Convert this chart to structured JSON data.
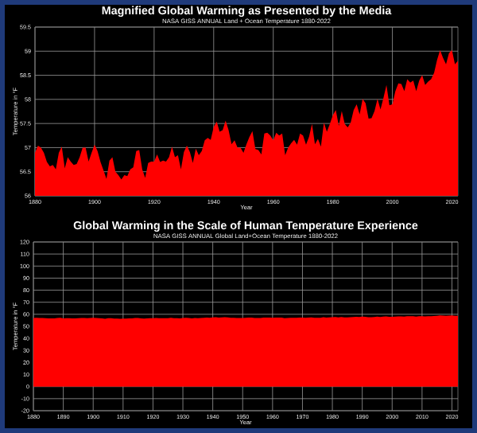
{
  "chart_data": [
    {
      "type": "area",
      "title": "Magnified Global Warming as Presented by the Media",
      "subtitle": "NASA GISS ANNUAL Land + Ocean Temperature 1880-2022",
      "xlabel": "Year",
      "ylabel": "Temperature in °F",
      "color": "#ff0000",
      "grid": true,
      "xlim": [
        1880,
        2022
      ],
      "xticks": [
        1880,
        1900,
        1920,
        1940,
        1960,
        1980,
        2000,
        2020
      ],
      "ylim": [
        56,
        59.5
      ],
      "yticks": [
        56,
        56.5,
        57,
        57.5,
        58,
        58.5,
        59,
        59.5
      ],
      "x": [
        1880,
        1881,
        1882,
        1883,
        1884,
        1885,
        1886,
        1887,
        1888,
        1889,
        1890,
        1891,
        1892,
        1893,
        1894,
        1895,
        1896,
        1897,
        1898,
        1899,
        1900,
        1901,
        1902,
        1903,
        1904,
        1905,
        1906,
        1907,
        1908,
        1909,
        1910,
        1911,
        1912,
        1913,
        1914,
        1915,
        1916,
        1917,
        1918,
        1919,
        1920,
        1921,
        1922,
        1923,
        1924,
        1925,
        1926,
        1927,
        1928,
        1929,
        1930,
        1931,
        1932,
        1933,
        1934,
        1935,
        1936,
        1937,
        1938,
        1939,
        1940,
        1941,
        1942,
        1943,
        1944,
        1945,
        1946,
        1947,
        1948,
        1949,
        1950,
        1951,
        1952,
        1953,
        1954,
        1955,
        1956,
        1957,
        1958,
        1959,
        1960,
        1961,
        1962,
        1963,
        1964,
        1965,
        1966,
        1967,
        1968,
        1969,
        1970,
        1971,
        1972,
        1973,
        1974,
        1975,
        1976,
        1977,
        1978,
        1979,
        1980,
        1981,
        1982,
        1983,
        1984,
        1985,
        1986,
        1987,
        1988,
        1989,
        1990,
        1991,
        1992,
        1993,
        1994,
        1995,
        1996,
        1997,
        1998,
        1999,
        2000,
        2001,
        2002,
        2003,
        2004,
        2005,
        2006,
        2007,
        2008,
        2009,
        2010,
        2011,
        2012,
        2013,
        2014,
        2015,
        2016,
        2017,
        2018,
        2019,
        2020,
        2021,
        2022
      ],
      "values": [
        56.89,
        57.04,
        57.0,
        56.89,
        56.7,
        56.61,
        56.64,
        56.55,
        56.89,
        57.02,
        56.57,
        56.8,
        56.71,
        56.64,
        56.66,
        56.8,
        57.0,
        57.0,
        56.71,
        56.89,
        57.06,
        56.93,
        56.7,
        56.53,
        56.35,
        56.73,
        56.8,
        56.5,
        56.43,
        56.34,
        56.43,
        56.41,
        56.55,
        56.59,
        56.93,
        56.95,
        56.55,
        56.37,
        56.68,
        56.71,
        56.71,
        56.86,
        56.7,
        56.73,
        56.71,
        56.8,
        57.02,
        56.8,
        56.84,
        56.55,
        56.91,
        57.04,
        56.91,
        56.68,
        56.98,
        56.84,
        56.93,
        57.15,
        57.2,
        57.16,
        57.43,
        57.54,
        57.33,
        57.36,
        57.56,
        57.36,
        57.07,
        57.15,
        57.0,
        57.0,
        56.89,
        57.07,
        57.22,
        57.34,
        56.97,
        56.95,
        56.86,
        57.29,
        57.31,
        57.25,
        57.15,
        57.31,
        57.25,
        57.29,
        56.84,
        57.0,
        57.09,
        57.16,
        57.06,
        57.29,
        57.25,
        57.06,
        57.22,
        57.49,
        57.07,
        57.18,
        57.02,
        57.52,
        57.33,
        57.49,
        57.67,
        57.78,
        57.45,
        57.76,
        57.49,
        57.42,
        57.52,
        57.78,
        57.9,
        57.69,
        58.01,
        57.92,
        57.6,
        57.61,
        57.76,
        58.01,
        57.79,
        58.03,
        58.3,
        57.88,
        57.9,
        58.17,
        58.33,
        58.32,
        58.17,
        58.42,
        58.35,
        58.39,
        58.17,
        58.39,
        58.5,
        58.3,
        58.37,
        58.42,
        58.55,
        58.82,
        59.02,
        58.86,
        58.73,
        58.96,
        59.02,
        58.73,
        58.8
      ]
    },
    {
      "type": "area",
      "title": "Global Warming in the Scale of Human Temperature Experience",
      "subtitle": "NASA GISS ANNUAL Global Land+Ocean Temperature 1880-2022",
      "xlabel": "Year",
      "ylabel": "Temperature in °F",
      "color": "#ff0000",
      "grid": true,
      "xlim": [
        1880,
        2022
      ],
      "xticks": [
        1880,
        1890,
        1900,
        1910,
        1920,
        1930,
        1940,
        1950,
        1960,
        1970,
        1980,
        1990,
        2000,
        2010,
        2020
      ],
      "ylim": [
        -20,
        120
      ],
      "yticks": [
        -20,
        -10,
        0,
        10,
        20,
        30,
        40,
        50,
        60,
        70,
        80,
        90,
        100,
        110,
        120
      ],
      "x": [
        1880,
        1881,
        1882,
        1883,
        1884,
        1885,
        1886,
        1887,
        1888,
        1889,
        1890,
        1891,
        1892,
        1893,
        1894,
        1895,
        1896,
        1897,
        1898,
        1899,
        1900,
        1901,
        1902,
        1903,
        1904,
        1905,
        1906,
        1907,
        1908,
        1909,
        1910,
        1911,
        1912,
        1913,
        1914,
        1915,
        1916,
        1917,
        1918,
        1919,
        1920,
        1921,
        1922,
        1923,
        1924,
        1925,
        1926,
        1927,
        1928,
        1929,
        1930,
        1931,
        1932,
        1933,
        1934,
        1935,
        1936,
        1937,
        1938,
        1939,
        1940,
        1941,
        1942,
        1943,
        1944,
        1945,
        1946,
        1947,
        1948,
        1949,
        1950,
        1951,
        1952,
        1953,
        1954,
        1955,
        1956,
        1957,
        1958,
        1959,
        1960,
        1961,
        1962,
        1963,
        1964,
        1965,
        1966,
        1967,
        1968,
        1969,
        1970,
        1971,
        1972,
        1973,
        1974,
        1975,
        1976,
        1977,
        1978,
        1979,
        1980,
        1981,
        1982,
        1983,
        1984,
        1985,
        1986,
        1987,
        1988,
        1989,
        1990,
        1991,
        1992,
        1993,
        1994,
        1995,
        1996,
        1997,
        1998,
        1999,
        2000,
        2001,
        2002,
        2003,
        2004,
        2005,
        2006,
        2007,
        2008,
        2009,
        2010,
        2011,
        2012,
        2013,
        2014,
        2015,
        2016,
        2017,
        2018,
        2019,
        2020,
        2021,
        2022
      ],
      "values": [
        56.89,
        57.04,
        57.0,
        56.89,
        56.7,
        56.61,
        56.64,
        56.55,
        56.89,
        57.02,
        56.57,
        56.8,
        56.71,
        56.64,
        56.66,
        56.8,
        57.0,
        57.0,
        56.71,
        56.89,
        57.06,
        56.93,
        56.7,
        56.53,
        56.35,
        56.73,
        56.8,
        56.5,
        56.43,
        56.34,
        56.43,
        56.41,
        56.55,
        56.59,
        56.93,
        56.95,
        56.55,
        56.37,
        56.68,
        56.71,
        56.71,
        56.86,
        56.7,
        56.73,
        56.71,
        56.8,
        57.02,
        56.8,
        56.84,
        56.55,
        56.91,
        57.04,
        56.91,
        56.68,
        56.98,
        56.84,
        56.93,
        57.15,
        57.2,
        57.16,
        57.43,
        57.54,
        57.33,
        57.36,
        57.56,
        57.36,
        57.07,
        57.15,
        57.0,
        57.0,
        56.89,
        57.07,
        57.22,
        57.34,
        56.97,
        56.95,
        56.86,
        57.29,
        57.31,
        57.25,
        57.15,
        57.31,
        57.25,
        57.29,
        56.84,
        57.0,
        57.09,
        57.16,
        57.06,
        57.29,
        57.25,
        57.06,
        57.22,
        57.49,
        57.07,
        57.18,
        57.02,
        57.52,
        57.33,
        57.49,
        57.67,
        57.78,
        57.45,
        57.76,
        57.49,
        57.42,
        57.52,
        57.78,
        57.9,
        57.69,
        58.01,
        57.92,
        57.6,
        57.61,
        57.76,
        58.01,
        57.79,
        58.03,
        58.3,
        57.88,
        57.9,
        58.17,
        58.33,
        58.32,
        58.17,
        58.42,
        58.35,
        58.39,
        58.17,
        58.39,
        58.5,
        58.3,
        58.37,
        58.42,
        58.55,
        58.82,
        59.02,
        58.86,
        58.73,
        58.96,
        59.02,
        58.73,
        58.8
      ]
    }
  ]
}
